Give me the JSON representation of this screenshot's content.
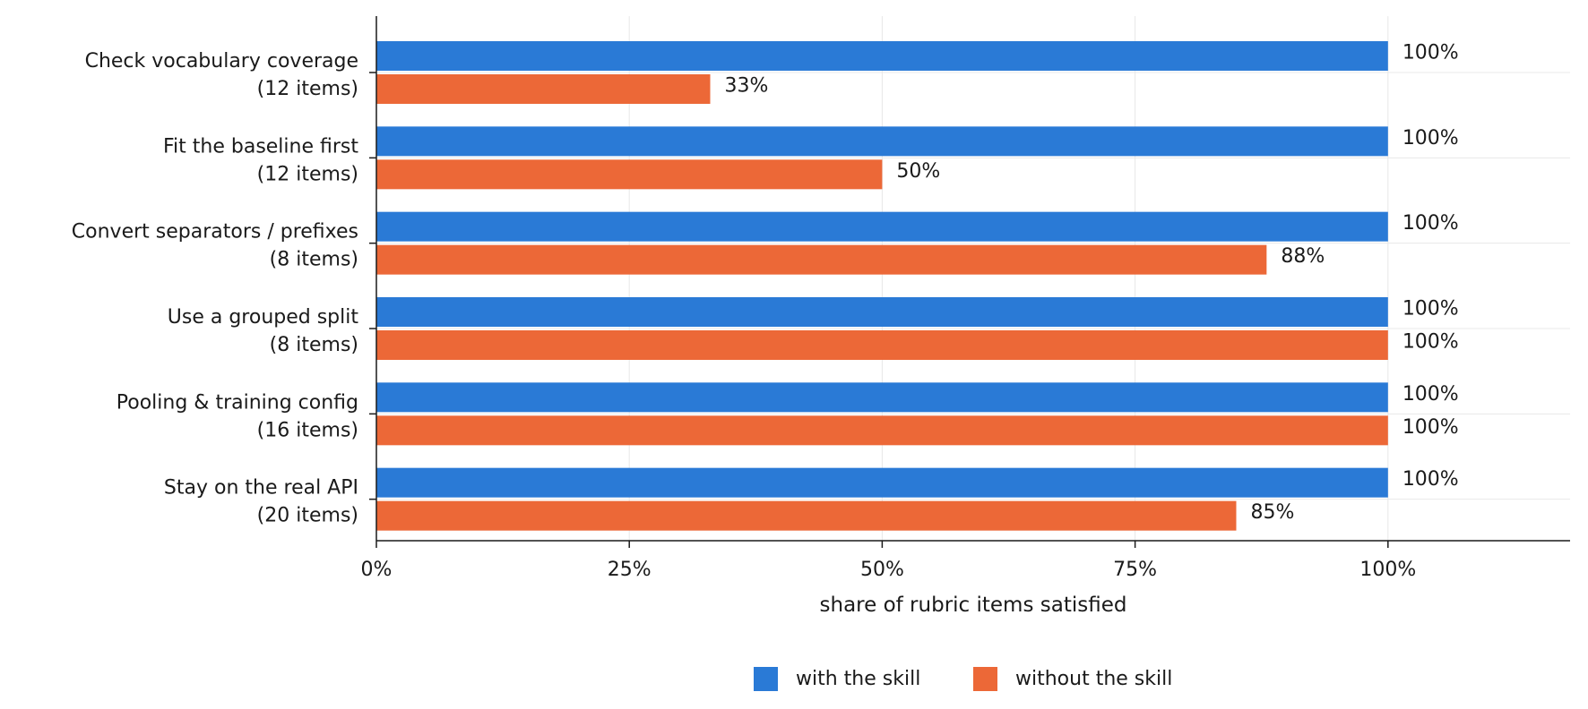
{
  "chart_data": {
    "type": "bar",
    "orientation": "horizontal",
    "categories": [
      [
        "Check vocabulary coverage",
        "(12 items)"
      ],
      [
        "Fit the baseline first",
        "(12 items)"
      ],
      [
        "Convert separators / prefixes",
        "(8 items)"
      ],
      [
        "Use a grouped split",
        "(8 items)"
      ],
      [
        "Pooling & training config",
        "(16 items)"
      ],
      [
        "Stay on the real API",
        "(20 items)"
      ]
    ],
    "series": [
      {
        "name": "with the skill",
        "color": "#2a7ad6",
        "values": [
          100,
          100,
          100,
          100,
          100,
          100
        ],
        "labels": [
          "100%",
          "100%",
          "100%",
          "100%",
          "100%",
          "100%"
        ]
      },
      {
        "name": "without the skill",
        "color": "#ec6837",
        "values": [
          33,
          50,
          88,
          100,
          100,
          85
        ],
        "labels": [
          "33%",
          "50%",
          "88%",
          "100%",
          "100%",
          "85%"
        ]
      }
    ],
    "xlabel": "share of rubric items satisfied",
    "xlim": [
      0,
      118
    ],
    "xticks": [
      0,
      25,
      50,
      75,
      100
    ],
    "xtick_labels": [
      "0%",
      "25%",
      "50%",
      "75%",
      "100%"
    ],
    "grid": true,
    "legend_position": "bottom-center"
  }
}
